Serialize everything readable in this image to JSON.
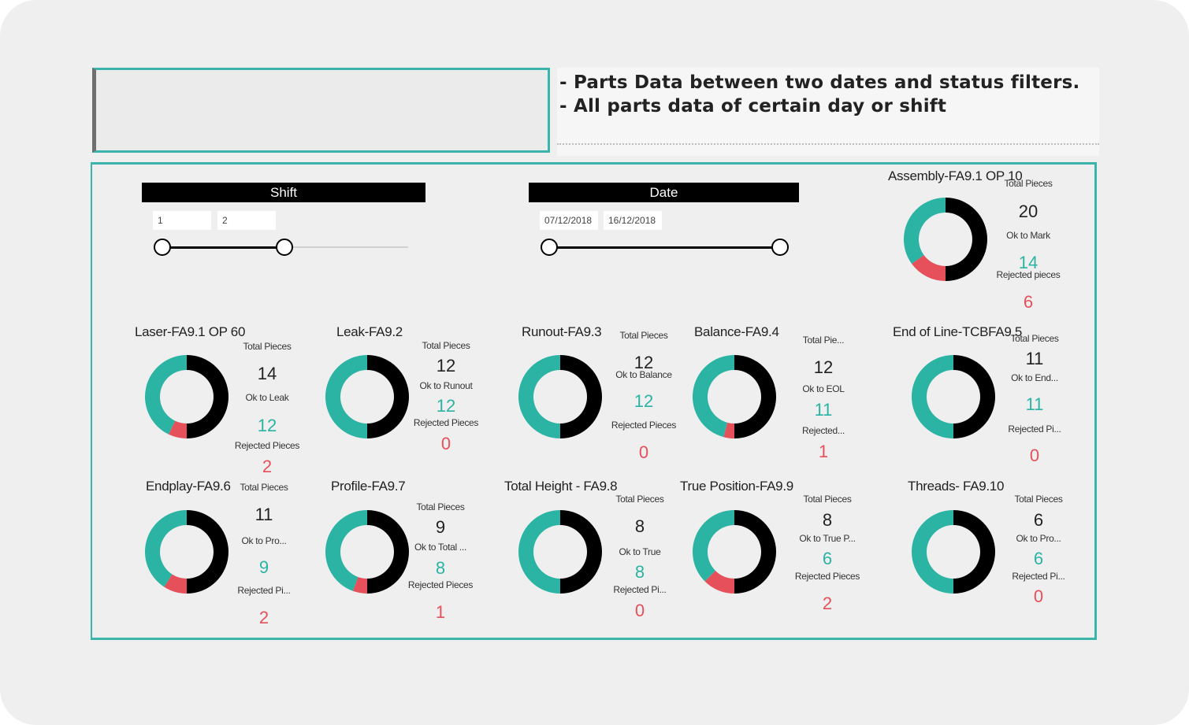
{
  "header": {
    "line1": "- Parts Data between two dates and status filters.",
    "line2": "- All parts data of certain day or shift"
  },
  "colors": {
    "accent": "#3bb4aa",
    "ok": "#2bb3a3",
    "rejected": "#e5505a",
    "remaining": "#000000"
  },
  "slicers": {
    "shift": {
      "title": "Shift",
      "from": "1",
      "to": "2"
    },
    "date": {
      "title": "Date",
      "from": "07/12/2018",
      "to": "16/12/2018"
    }
  },
  "stations": [
    {
      "title": "Assembly-FA9.1 OP 10",
      "total_label": "Total Pieces",
      "total": "20",
      "ok_label": "Ok to Mark",
      "ok": "14",
      "rej_label": "Rejected pieces",
      "rej": "6"
    },
    {
      "title": "Laser-FA9.1 OP 60",
      "total_label": "Total Pieces",
      "total": "14",
      "ok_label": "Ok to Leak",
      "ok": "12",
      "rej_label": "Rejected Pieces",
      "rej": "2"
    },
    {
      "title": "Leak-FA9.2",
      "total_label": "Total Pieces",
      "total": "12",
      "ok_label": "Ok to Runout",
      "ok": "12",
      "rej_label": "Rejected Pieces",
      "rej": "0"
    },
    {
      "title": "Runout-FA9.3",
      "total_label": "Total Pieces",
      "total": "12",
      "ok_label": "Ok to Balance",
      "ok": "12",
      "rej_label": "Rejected Pieces",
      "rej": "0"
    },
    {
      "title": "Balance-FA9.4",
      "total_label": "Total Pie...",
      "total": "12",
      "ok_label": "Ok to EOL",
      "ok": "11",
      "rej_label": "Rejected...",
      "rej": "1"
    },
    {
      "title": "End of Line-TCBFA9.5",
      "total_label": "Total Pieces",
      "total": "11",
      "ok_label": "Ok to End...",
      "ok": "11",
      "rej_label": "Rejected Pi...",
      "rej": "0"
    },
    {
      "title": "Endplay-FA9.6",
      "total_label": "Total Pieces",
      "total": "11",
      "ok_label": "Ok to Pro...",
      "ok": "9",
      "rej_label": "Rejected Pi...",
      "rej": "2"
    },
    {
      "title": "Profile-FA9.7",
      "total_label": "Total Pieces",
      "total": "9",
      "ok_label": "Ok to Total ...",
      "ok": "8",
      "rej_label": "Rejected Pieces",
      "rej": "1"
    },
    {
      "title": "Total Height - FA9.8",
      "total_label": "Total Pieces",
      "total": "8",
      "ok_label": "Ok to True",
      "ok": "8",
      "rej_label": "Rejected Pi...",
      "rej": "0"
    },
    {
      "title": "True Position-FA9.9",
      "total_label": "Total Pieces",
      "total": "8",
      "ok_label": "Ok to True P...",
      "ok": "6",
      "rej_label": "Rejected Pieces",
      "rej": "2"
    },
    {
      "title": "Threads- FA9.10",
      "total_label": "Total Pieces",
      "total": "6",
      "ok_label": "Ok to Pro...",
      "ok": "6",
      "rej_label": "Rejected Pi...",
      "rej": "0"
    }
  ]
}
